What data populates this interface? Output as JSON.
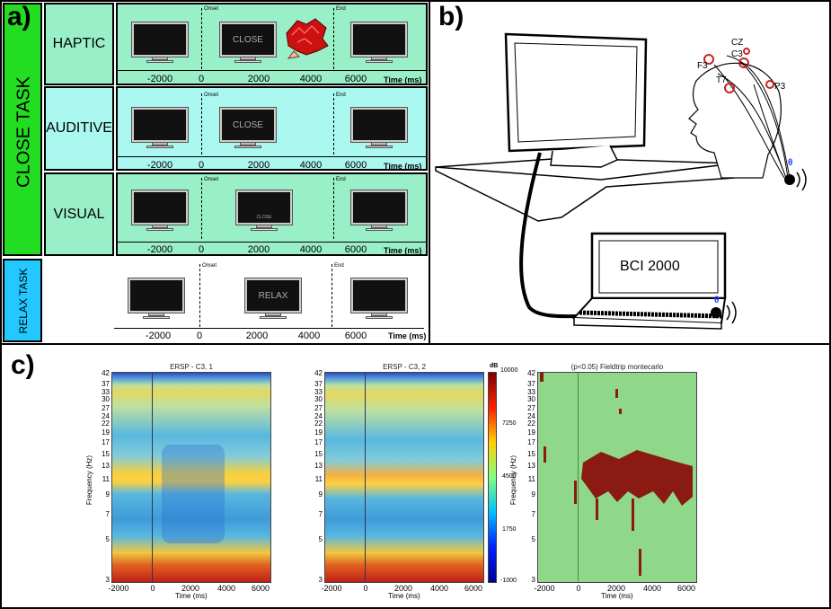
{
  "panels": {
    "a": "a)",
    "b": "b)",
    "c": "c)"
  },
  "close_task": {
    "label": "CLOSE TASK",
    "color": "#22dd22"
  },
  "relax_task": {
    "label": "RELAX TASK",
    "color": "#22c8ff"
  },
  "conditions": [
    {
      "name": "HAPTIC",
      "screen_text": "CLOSE",
      "bg": "#99f0c8"
    },
    {
      "name": "AUDITIVE",
      "screen_text": "CLOSE",
      "bg": "#aaf8f0"
    },
    {
      "name": "VISUAL",
      "screen_text": "CLOSE",
      "bg": "#99f0c8"
    }
  ],
  "relax": {
    "screen_text": "RELAX"
  },
  "timeline": {
    "ticks": [
      "-2000",
      "0",
      "2000",
      "4000",
      "6000"
    ],
    "label": "Time (ms)",
    "onset": "Onset",
    "end": "End"
  },
  "setup": {
    "electrodes": [
      "CZ",
      "C3",
      "F3",
      "T7",
      "P3"
    ],
    "laptop_text": "BCI 2000",
    "bt_symbol": "θ"
  },
  "heatmaps": {
    "titles": [
      "ERSP - C3, 1",
      "ERSP - C3, 2",
      "(p<0.05) Fieldtrip montecarlo"
    ],
    "ylabel": "Frequency (Hz)",
    "xlabel": "Time (ms)",
    "yticks": [
      "42",
      "37",
      "33",
      "30",
      "27",
      "24",
      "22",
      "19",
      "17",
      "15",
      "13",
      "11",
      "9",
      "7",
      "5",
      "3"
    ],
    "xticks": [
      "-2000",
      "0",
      "2000",
      "4000",
      "6000"
    ],
    "colorbar": {
      "unit": "dB",
      "ticks": [
        "10000",
        "7250",
        "4500",
        "1750",
        "-1000"
      ]
    }
  }
}
